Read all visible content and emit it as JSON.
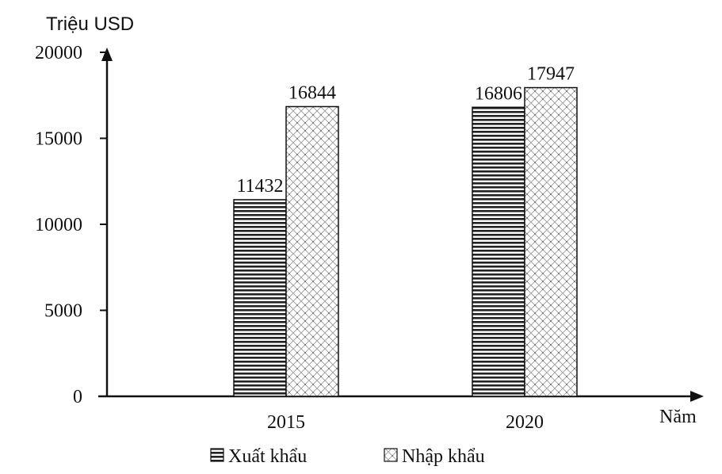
{
  "chart_data": {
    "type": "bar",
    "categories": [
      "2015",
      "2020"
    ],
    "series": [
      {
        "name": "Xuất khẩu",
        "values": [
          11432,
          16806
        ],
        "pattern": "horizontal-stripes"
      },
      {
        "name": "Nhập khẩu",
        "values": [
          16844,
          17947
        ],
        "pattern": "crosshatch-dots"
      }
    ],
    "ylabel": "Triệu USD",
    "xlabel": "Năm",
    "ylim": [
      0,
      20000
    ],
    "yticks": [
      {
        "value": 0,
        "label": "0"
      },
      {
        "value": 5000,
        "label": "5000"
      },
      {
        "value": 10000,
        "label": "10000"
      },
      {
        "value": 15000,
        "label": "15000"
      },
      {
        "value": 20000,
        "label": "20000"
      }
    ],
    "grid": false,
    "legend_position": "bottom",
    "colors": {
      "ink": "#111111",
      "background": "#ffffff"
    }
  }
}
